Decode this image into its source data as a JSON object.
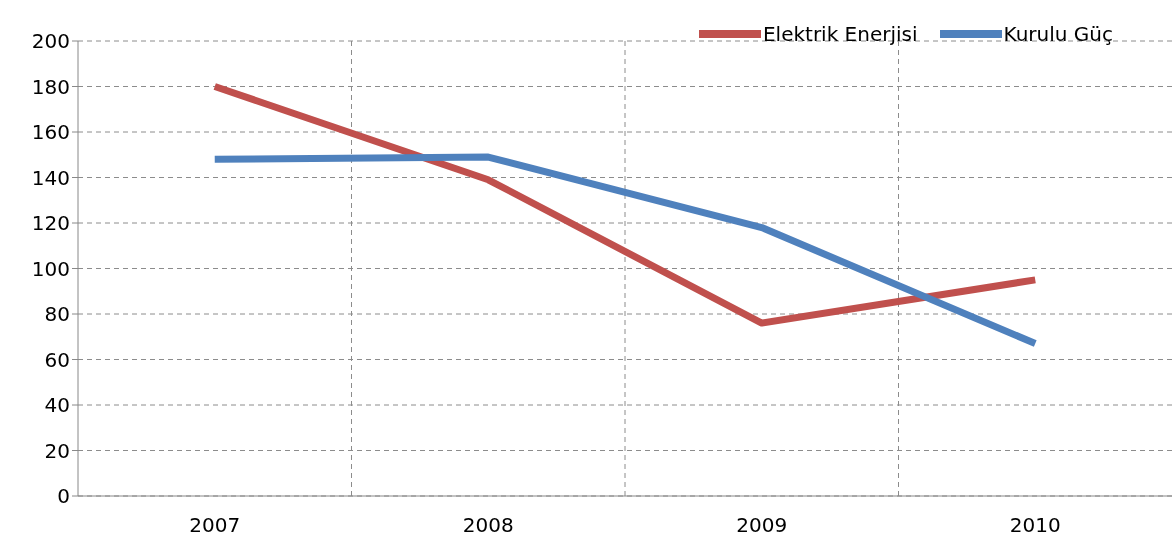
{
  "chart_data": {
    "type": "line",
    "categories": [
      "2007",
      "2008",
      "2009",
      "2010"
    ],
    "series": [
      {
        "name": "Elektrik Enerjisi",
        "color": "#c0504d",
        "values": [
          180,
          139,
          76,
          95
        ]
      },
      {
        "name": "Kurulu Güç",
        "color": "#4f81bd",
        "values": [
          148,
          149,
          118,
          67
        ]
      }
    ],
    "ylim": [
      0,
      200
    ],
    "yticks": [
      0,
      20,
      40,
      60,
      80,
      100,
      120,
      140,
      160,
      180,
      200
    ],
    "grid": true,
    "legend": "top right",
    "marker": "none",
    "line_style": "solid"
  }
}
